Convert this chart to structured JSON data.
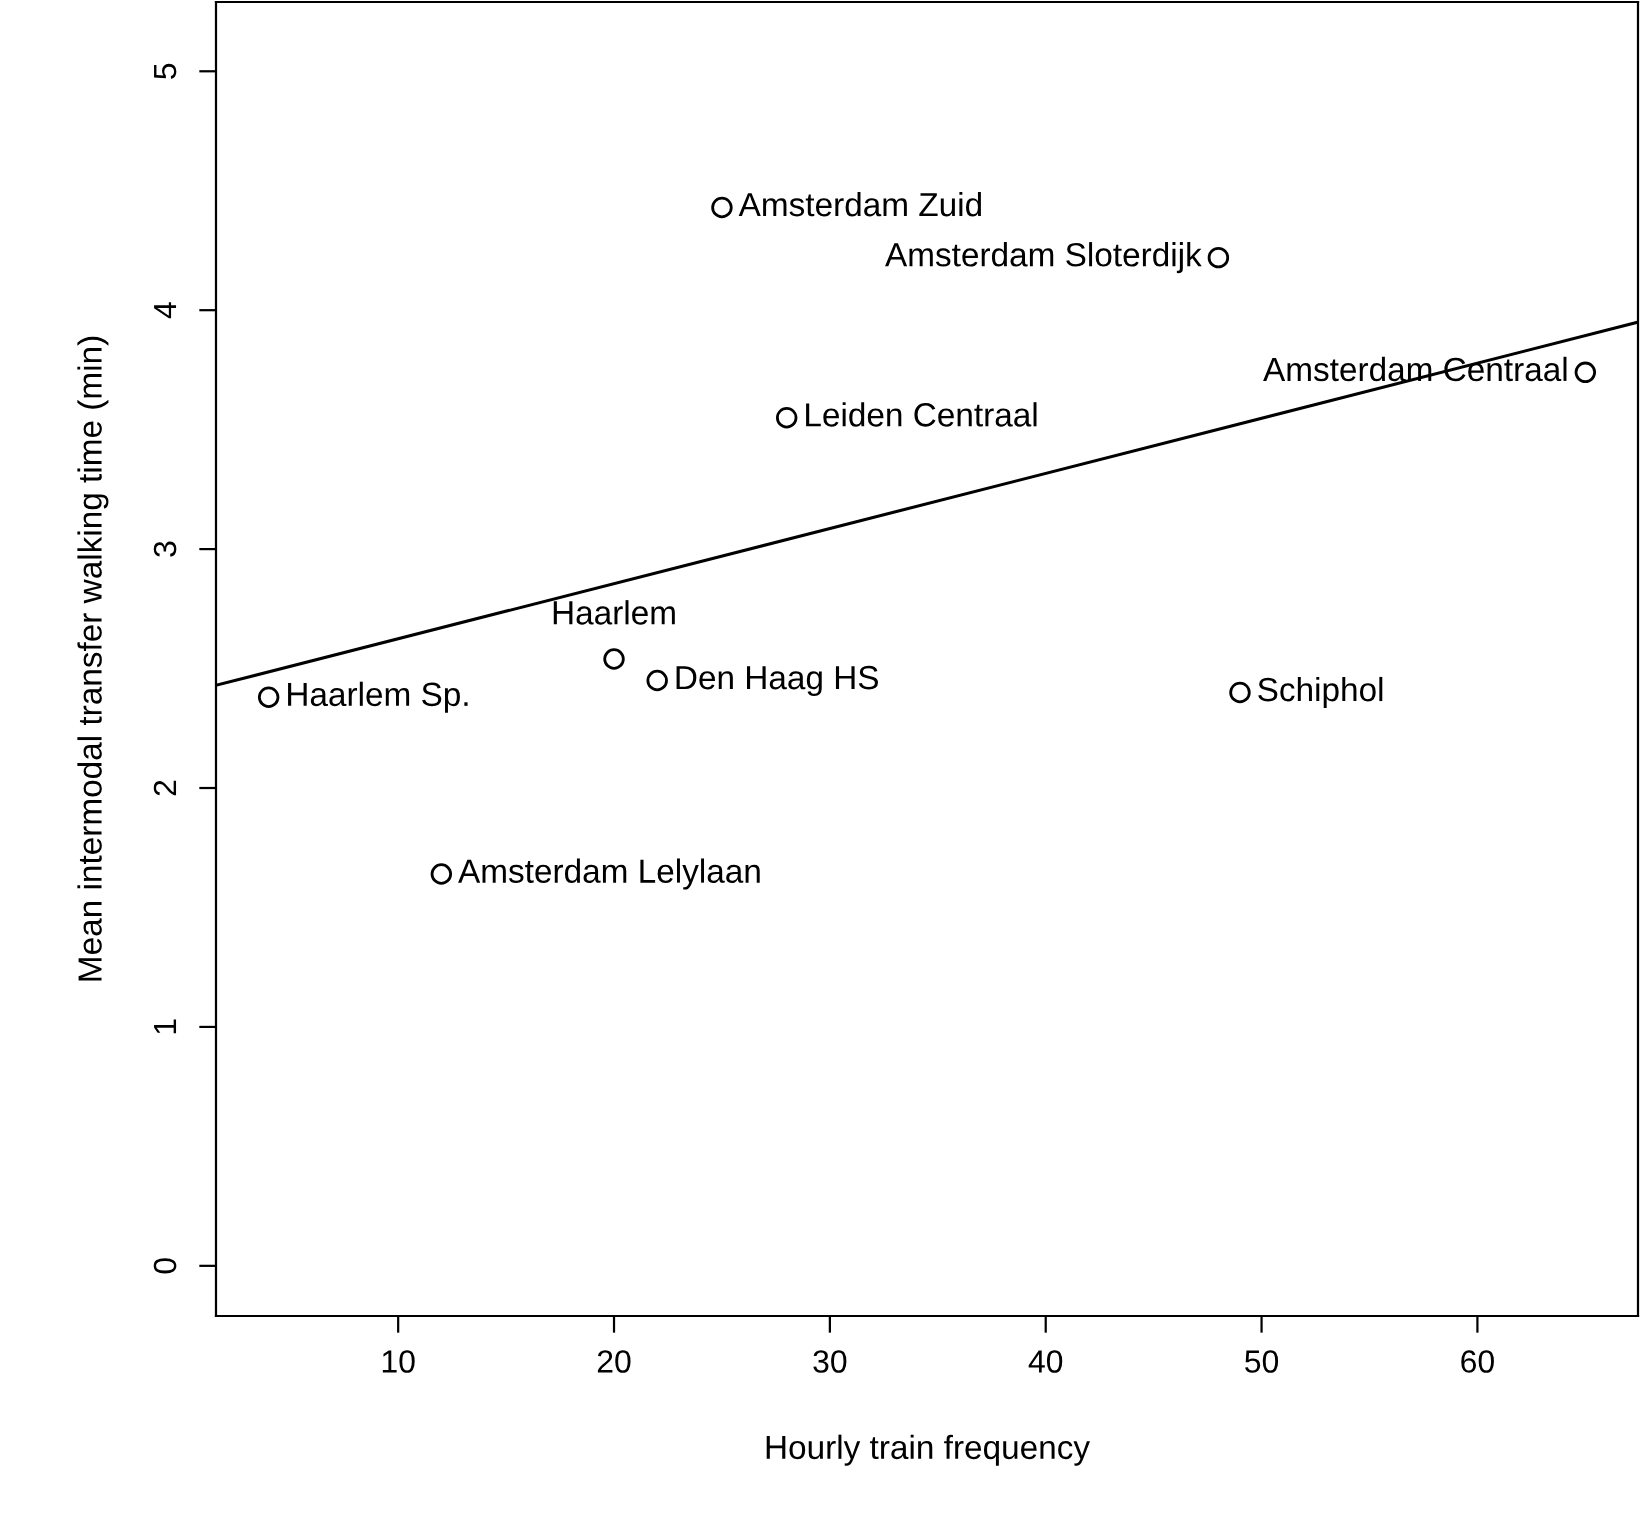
{
  "chart_data": {
    "type": "scatter",
    "xlabel": "Hourly train frequency",
    "ylabel": "Mean intermodal transfer walking time (min)",
    "xlim": [
      1.56,
      67.44
    ],
    "ylim": [
      -0.21,
      5.29
    ],
    "xticks": [
      10,
      20,
      30,
      40,
      50,
      60
    ],
    "yticks": [
      0,
      1,
      2,
      3,
      4,
      5
    ],
    "grid": false,
    "series": [
      {
        "marker": "circle",
        "color": "#000000",
        "x": [
          4,
          20,
          22,
          12,
          25,
          48,
          28,
          65,
          49
        ],
        "values": [
          2.38,
          2.54,
          2.45,
          1.64,
          4.43,
          4.22,
          3.55,
          3.74,
          2.4
        ]
      },
      {
        "type": "line",
        "marker": "none",
        "color": "#000000",
        "line_style": "solid",
        "x": [
          1.56,
          67.44
        ],
        "values": [
          2.43,
          3.95
        ]
      }
    ],
    "annotations": [
      {
        "text": "Haarlem Sp.",
        "x": 4,
        "y": 2.38
      },
      {
        "text": "Haarlem",
        "x": 20,
        "y": 2.54
      },
      {
        "text": "Den Haag HS",
        "x": 22,
        "y": 2.45
      },
      {
        "text": "Amsterdam Lelylaan",
        "x": 12,
        "y": 1.64
      },
      {
        "text": "Amsterdam Zuid",
        "x": 25,
        "y": 4.43
      },
      {
        "text": "Amsterdam Sloterdijk",
        "x": 48,
        "y": 4.22
      },
      {
        "text": "Leiden Centraal",
        "x": 28,
        "y": 3.55
      },
      {
        "text": "Amsterdam Centraal",
        "x": 65,
        "y": 3.74
      },
      {
        "text": "Schiphol",
        "x": 49,
        "y": 2.4
      }
    ]
  }
}
